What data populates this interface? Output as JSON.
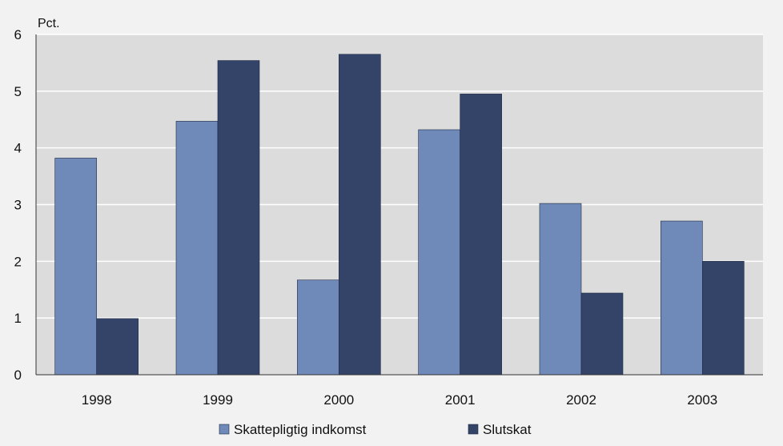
{
  "chart_data": {
    "type": "bar",
    "ylabel": "Pct.",
    "categories": [
      "1998",
      "1999",
      "2000",
      "2001",
      "2002",
      "2003"
    ],
    "ylim": [
      0,
      6
    ],
    "yticks": [
      "0",
      "1",
      "2",
      "3",
      "4",
      "5",
      "6"
    ],
    "grid": true,
    "legend_position": "bottom",
    "series": [
      {
        "name": "Skattepligtig indkomst",
        "color": "#6f8ab8",
        "values": [
          3.82,
          4.47,
          1.67,
          4.32,
          3.02,
          2.71
        ]
      },
      {
        "name": "Slutskat",
        "color": "#344469",
        "values": [
          0.99,
          5.54,
          5.65,
          4.95,
          1.44,
          2.0
        ]
      }
    ]
  }
}
